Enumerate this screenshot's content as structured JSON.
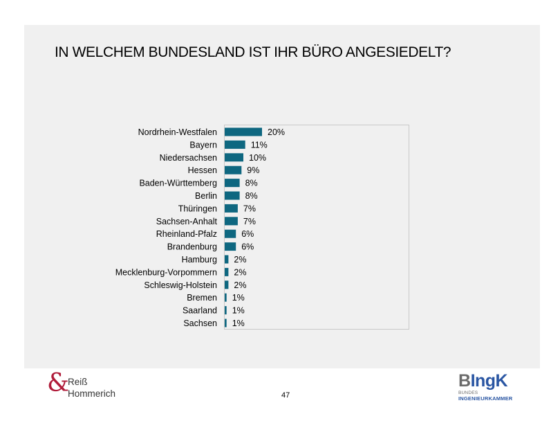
{
  "slide": {
    "title": "IN WELCHEM BUNDESLAND IST IHR BÜRO ANGESIEDELT?",
    "page_number": "47"
  },
  "logos": {
    "left": {
      "symbol": "&",
      "line1": "Reiß",
      "line2": "Hommerich",
      "color": "#b01c3a"
    },
    "right": {
      "mark_first": "B",
      "mark_rest": "IngK",
      "line1": "BUNDES",
      "line2": "INGENIEURKAMMER",
      "color": "#2a56a3"
    }
  },
  "chart_data": {
    "type": "bar",
    "orientation": "horizontal",
    "title": "IN WELCHEM BUNDESLAND IST IHR BÜRO ANGESIEDELT?",
    "xlabel": "",
    "ylabel": "",
    "unit": "%",
    "bar_color": "#0e6780",
    "grid": false,
    "legend": "none",
    "xlim": [
      0,
      100
    ],
    "categories": [
      "Nordrhein-Westfalen",
      "Bayern",
      "Niedersachsen",
      "Hessen",
      "Baden-Württemberg",
      "Berlin",
      "Thüringen",
      "Sachsen-Anhalt",
      "Rheinland-Pfalz",
      "Brandenburg",
      "Hamburg",
      "Mecklenburg-Vorpommern",
      "Schleswig-Holstein",
      "Bremen",
      "Saarland",
      "Sachsen"
    ],
    "values": [
      20,
      11,
      10,
      9,
      8,
      8,
      7,
      7,
      6,
      6,
      2,
      2,
      2,
      1,
      1,
      1
    ],
    "value_labels": [
      "20%",
      "11%",
      "10%",
      "9%",
      "8%",
      "8%",
      "7%",
      "7%",
      "6%",
      "6%",
      "2%",
      "2%",
      "2%",
      "1%",
      "1%",
      "1%"
    ]
  }
}
